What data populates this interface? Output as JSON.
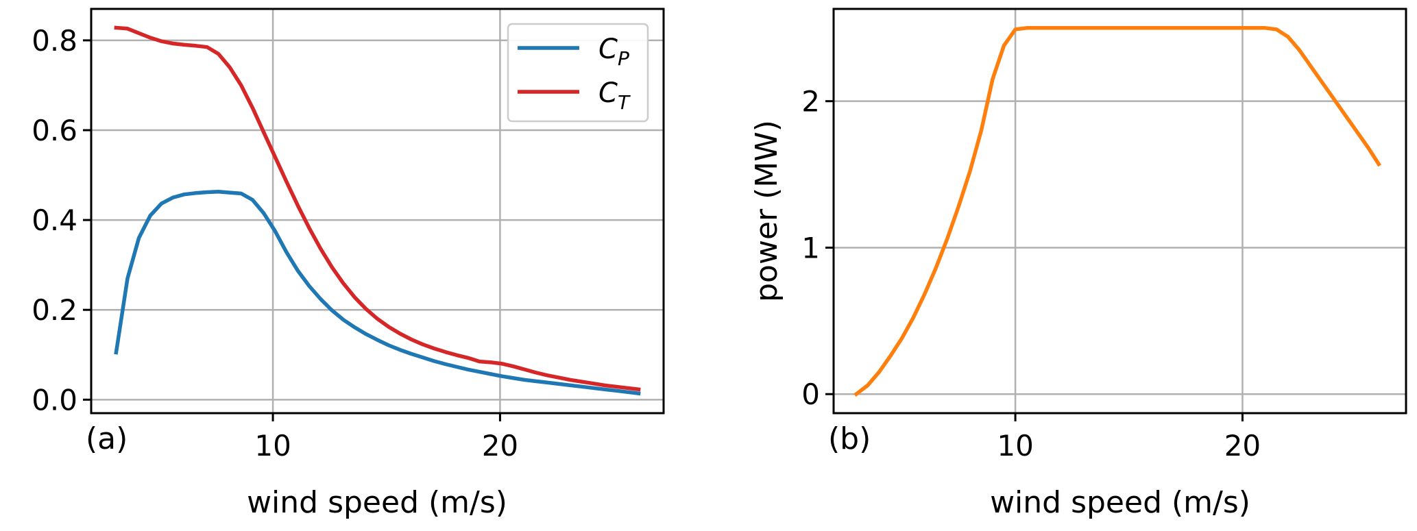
{
  "chart_data": [
    {
      "type": "line",
      "panel_label": "(a)",
      "xlabel": "wind speed (m/s)",
      "ylabel": "",
      "xlim": [
        2.0,
        27.2
      ],
      "ylim": [
        -0.03,
        0.87
      ],
      "xticks": [
        10,
        20
      ],
      "yticks": [
        0.0,
        0.2,
        0.4,
        0.6,
        0.8
      ],
      "xtick_labels": [
        "10",
        "20"
      ],
      "ytick_labels": [
        "0.0",
        "0.2",
        "0.4",
        "0.6",
        "0.8"
      ],
      "grid": true,
      "legend_position": "top-right",
      "series": [
        {
          "name": "C_P",
          "legend_main": "C",
          "legend_sub": "P",
          "color": "#1f77b4",
          "x": [
            3.1,
            3.6,
            4.1,
            4.6,
            5.1,
            5.6,
            6.1,
            6.6,
            7.1,
            7.6,
            8.1,
            8.6,
            9.1,
            9.6,
            10.1,
            10.6,
            11.1,
            11.6,
            12.1,
            12.6,
            13.1,
            13.6,
            14.1,
            14.6,
            15.1,
            15.6,
            16.1,
            16.6,
            17.1,
            17.6,
            18.1,
            18.6,
            19.1,
            19.6,
            20.1,
            20.6,
            21.1,
            21.6,
            22.1,
            22.6,
            23.1,
            23.6,
            24.1,
            24.6,
            25.1,
            25.6,
            26.1
          ],
          "y": [
            0.105,
            0.27,
            0.36,
            0.41,
            0.437,
            0.45,
            0.457,
            0.46,
            0.462,
            0.463,
            0.461,
            0.459,
            0.445,
            0.415,
            0.375,
            0.328,
            0.287,
            0.253,
            0.224,
            0.199,
            0.178,
            0.161,
            0.146,
            0.133,
            0.121,
            0.111,
            0.102,
            0.094,
            0.086,
            0.079,
            0.073,
            0.067,
            0.062,
            0.057,
            0.052,
            0.048,
            0.044,
            0.041,
            0.038,
            0.035,
            0.032,
            0.029,
            0.026,
            0.023,
            0.02,
            0.017,
            0.014
          ]
        },
        {
          "name": "C_T",
          "legend_main": "C",
          "legend_sub": "T",
          "color": "#d62728",
          "x": [
            3.1,
            3.6,
            4.1,
            4.6,
            5.1,
            5.6,
            6.1,
            6.6,
            7.1,
            7.6,
            8.1,
            8.6,
            9.1,
            9.6,
            10.1,
            10.6,
            11.1,
            11.6,
            12.1,
            12.6,
            13.1,
            13.6,
            14.1,
            14.6,
            15.1,
            15.6,
            16.1,
            16.6,
            17.1,
            17.6,
            18.1,
            18.6,
            19.1,
            19.6,
            20.1,
            20.6,
            21.1,
            21.6,
            22.1,
            22.6,
            23.1,
            23.6,
            24.1,
            24.6,
            25.1,
            25.6,
            26.1
          ],
          "y": [
            0.828,
            0.826,
            0.816,
            0.806,
            0.798,
            0.793,
            0.79,
            0.788,
            0.785,
            0.77,
            0.74,
            0.7,
            0.65,
            0.595,
            0.54,
            0.485,
            0.432,
            0.382,
            0.336,
            0.295,
            0.259,
            0.228,
            0.202,
            0.18,
            0.162,
            0.147,
            0.134,
            0.123,
            0.114,
            0.106,
            0.099,
            0.093,
            0.085,
            0.083,
            0.08,
            0.074,
            0.067,
            0.06,
            0.054,
            0.049,
            0.044,
            0.04,
            0.036,
            0.032,
            0.029,
            0.026,
            0.023
          ]
        }
      ]
    },
    {
      "type": "line",
      "panel_label": "(b)",
      "xlabel": "wind speed (m/s)",
      "ylabel": "power (MW)",
      "xlim": [
        2.0,
        27.2
      ],
      "ylim": [
        -0.13,
        2.63
      ],
      "xticks": [
        10,
        20
      ],
      "yticks": [
        0,
        1,
        2
      ],
      "xtick_labels": [
        "10",
        "20"
      ],
      "ytick_labels": [
        "0",
        "1",
        "2"
      ],
      "grid": true,
      "series": [
        {
          "name": "power",
          "color": "#ff7f0e",
          "x": [
            3.0,
            3.5,
            4.0,
            4.5,
            5.0,
            5.5,
            6.0,
            6.5,
            7.0,
            7.5,
            8.0,
            8.5,
            9.0,
            9.5,
            10.0,
            10.5,
            11.0,
            12.0,
            13.0,
            14.0,
            15.0,
            16.0,
            17.0,
            18.0,
            19.0,
            20.0,
            21.0,
            21.5,
            22.0,
            22.5,
            23.0,
            23.5,
            24.0,
            24.5,
            25.0,
            25.5,
            26.0
          ],
          "y": [
            0.0,
            0.06,
            0.15,
            0.26,
            0.38,
            0.52,
            0.68,
            0.86,
            1.06,
            1.28,
            1.52,
            1.8,
            2.15,
            2.38,
            2.49,
            2.5,
            2.5,
            2.5,
            2.5,
            2.5,
            2.5,
            2.5,
            2.5,
            2.5,
            2.5,
            2.5,
            2.5,
            2.49,
            2.44,
            2.35,
            2.24,
            2.13,
            2.02,
            1.91,
            1.8,
            1.69,
            1.57
          ]
        }
      ]
    }
  ]
}
